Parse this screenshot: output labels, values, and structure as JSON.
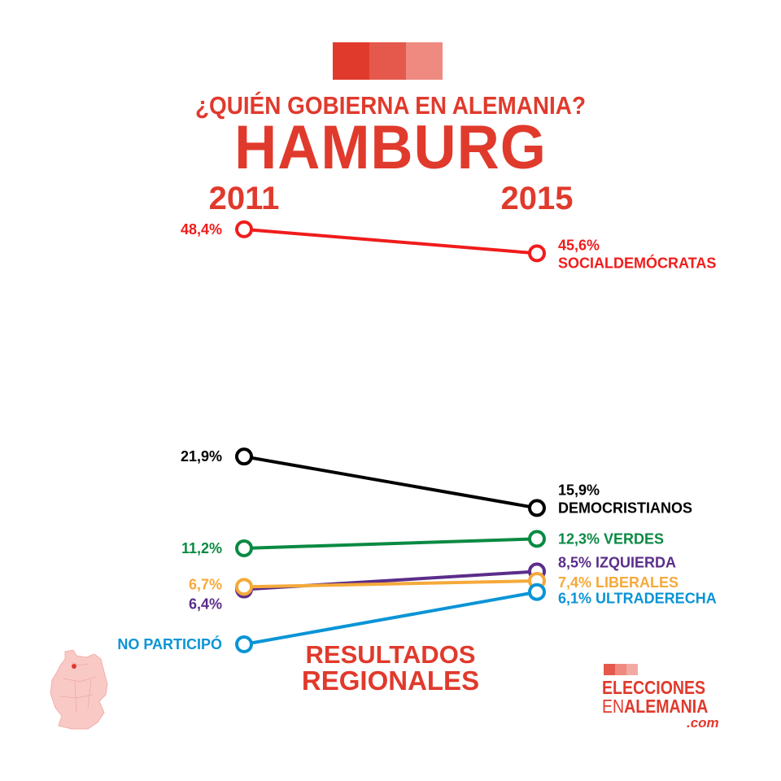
{
  "header": {
    "subtitle": "¿QUIÉN GOBIERNA EN ALEMANIA?",
    "title": "HAMBURG",
    "logo_colors": [
      "#e03a2d",
      "#e4594c",
      "#ee8a80"
    ]
  },
  "footer": {
    "line1": "RESULTADOS",
    "line2": "REGIONALES"
  },
  "brand": {
    "line1": "ELECCIONES",
    "line2_a": "EN",
    "line2_b": "ALEMANIA",
    "line3": ".com"
  },
  "chart_data": {
    "type": "line",
    "title": "HAMBURG",
    "x": [
      "2011",
      "2015"
    ],
    "ylim": [
      0,
      50
    ],
    "grid": false,
    "series": [
      {
        "name": "SOCIALDEMÓCRATAS",
        "color": "#f01c1c",
        "values": [
          48.4,
          45.6
        ],
        "labels": [
          "48,4%",
          "45,6%"
        ],
        "end_label": "SOCIALDEMÓCRATAS"
      },
      {
        "name": "DEMOCRISTIANOS",
        "color": "#000000",
        "values": [
          21.9,
          15.9
        ],
        "labels": [
          "21,9%",
          "15,9%"
        ],
        "end_label": "DEMOCRISTIANOS"
      },
      {
        "name": "VERDES",
        "color": "#0a8a43",
        "values": [
          11.2,
          12.3
        ],
        "labels": [
          "11,2%",
          "12,3% VERDES"
        ]
      },
      {
        "name": "IZQUIERDA",
        "color": "#5b2d8a",
        "values": [
          6.4,
          8.5
        ],
        "labels": [
          "6,4%",
          "8,5% IZQUIERDA"
        ]
      },
      {
        "name": "LIBERALES",
        "color": "#f5a93a",
        "values": [
          6.7,
          7.4
        ],
        "labels": [
          "6,7%",
          "7,4% LIBERALES"
        ]
      },
      {
        "name": "ULTRADERECHA",
        "color": "#0a94d6",
        "values": [
          0,
          6.1
        ],
        "labels": [
          "NO PARTICIPÓ",
          "6,1% ULTRADERECHA"
        ]
      }
    ]
  }
}
